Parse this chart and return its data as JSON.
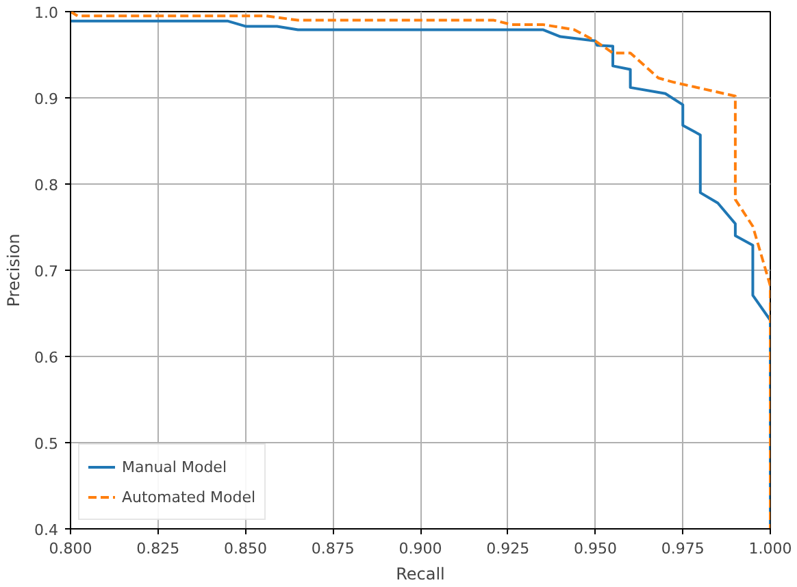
{
  "chart_data": {
    "type": "line",
    "xlabel": "Recall",
    "ylabel": "Precision",
    "xlim": [
      0.8,
      1.0
    ],
    "ylim": [
      0.4,
      1.0
    ],
    "xticks": [
      {
        "value": 0.8,
        "label": "0.800"
      },
      {
        "value": 0.825,
        "label": "0.825"
      },
      {
        "value": 0.85,
        "label": "0.850"
      },
      {
        "value": 0.875,
        "label": "0.875"
      },
      {
        "value": 0.9,
        "label": "0.900"
      },
      {
        "value": 0.925,
        "label": "0.925"
      },
      {
        "value": 0.95,
        "label": "0.950"
      },
      {
        "value": 0.975,
        "label": "0.975"
      },
      {
        "value": 1.0,
        "label": "1.000"
      }
    ],
    "yticks": [
      0.4,
      0.5,
      0.6,
      0.7,
      0.8,
      0.9,
      {
        "value": 1.0,
        "label": "1.0"
      }
    ],
    "grid": true,
    "legend": "bottom left",
    "series": [
      {
        "name": "Manual Model",
        "color": "#1f77b4",
        "line_style": "solid",
        "x": [
          0.8,
          0.845,
          0.85,
          0.859,
          0.865,
          0.935,
          0.94,
          0.95,
          0.9505,
          0.955,
          0.955,
          0.96,
          0.96,
          0.97,
          0.975,
          0.975,
          0.98,
          0.98,
          0.985,
          0.99,
          0.99,
          0.995,
          0.995,
          1.0,
          1.0
        ],
        "values": [
          0.989,
          0.989,
          0.983,
          0.983,
          0.979,
          0.979,
          0.971,
          0.966,
          0.961,
          0.96,
          0.937,
          0.933,
          0.912,
          0.905,
          0.892,
          0.868,
          0.857,
          0.79,
          0.778,
          0.754,
          0.74,
          0.729,
          0.671,
          0.642,
          0.4
        ]
      },
      {
        "name": "Automated Model",
        "color": "#ff7f0e",
        "line_style": "dashed",
        "x": [
          0.8,
          0.802,
          0.856,
          0.865,
          0.921,
          0.926,
          0.935,
          0.944,
          0.95,
          0.955,
          0.96,
          0.968,
          0.9725,
          0.99,
          0.99,
          0.995,
          1.0,
          1.0
        ],
        "values": [
          1.0,
          0.995,
          0.995,
          0.99,
          0.99,
          0.985,
          0.985,
          0.979,
          0.966,
          0.952,
          0.952,
          0.923,
          0.918,
          0.902,
          0.782,
          0.751,
          0.682,
          0.4
        ]
      }
    ]
  }
}
